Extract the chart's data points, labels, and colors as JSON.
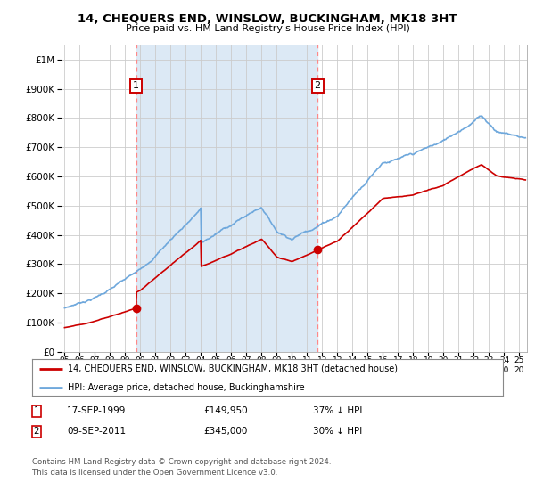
{
  "title": "14, CHEQUERS END, WINSLOW, BUCKINGHAM, MK18 3HT",
  "subtitle": "Price paid vs. HM Land Registry's House Price Index (HPI)",
  "legend_line1": "14, CHEQUERS END, WINSLOW, BUCKINGHAM, MK18 3HT (detached house)",
  "legend_line2": "HPI: Average price, detached house, Buckinghamshire",
  "sale1_date": "17-SEP-1999",
  "sale1_price": "£149,950",
  "sale1_hpi": "37% ↓ HPI",
  "sale1_year": 1999.72,
  "sale1_value": 149950,
  "sale2_date": "09-SEP-2011",
  "sale2_price": "£345,000",
  "sale2_hpi": "30% ↓ HPI",
  "sale2_year": 2011.69,
  "sale2_value": 345000,
  "hpi_color": "#6fa8dc",
  "price_color": "#cc0000",
  "shade_color": "#dce9f5",
  "dashed_line_color": "#ff8888",
  "background_color": "#FFFFFF",
  "grid_color": "#cccccc",
  "footnote": "Contains HM Land Registry data © Crown copyright and database right 2024.\nThis data is licensed under the Open Government Licence v3.0.",
  "ylim": [
    0,
    1000000
  ],
  "xlim_start": 1994.8,
  "xlim_end": 2025.5
}
